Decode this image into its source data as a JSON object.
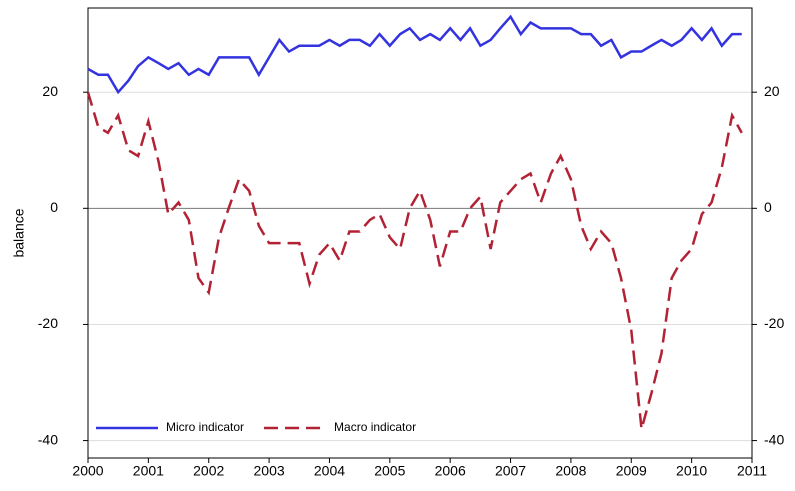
{
  "chart_data": {
    "type": "line",
    "ylabel": "balance",
    "x": [
      2000,
      2000.17,
      2000.33,
      2000.5,
      2000.67,
      2000.83,
      2001,
      2001.17,
      2001.33,
      2001.5,
      2001.67,
      2001.83,
      2002,
      2002.17,
      2002.33,
      2002.5,
      2002.67,
      2002.83,
      2003,
      2003.17,
      2003.33,
      2003.5,
      2003.67,
      2003.83,
      2004,
      2004.17,
      2004.33,
      2004.5,
      2004.67,
      2004.83,
      2005,
      2005.17,
      2005.33,
      2005.5,
      2005.67,
      2005.83,
      2006,
      2006.17,
      2006.33,
      2006.5,
      2006.67,
      2006.83,
      2007,
      2007.17,
      2007.33,
      2007.5,
      2007.67,
      2007.83,
      2008,
      2008.17,
      2008.33,
      2008.5,
      2008.67,
      2008.83,
      2009,
      2009.17,
      2009.33,
      2009.5,
      2009.67,
      2009.83,
      2010,
      2010.17,
      2010.33,
      2010.5,
      2010.67,
      2010.83
    ],
    "series": [
      {
        "name": "Micro indicator",
        "color": "#3333e0",
        "dash": "solid",
        "values": [
          24,
          23,
          23,
          20,
          22,
          24.5,
          26,
          25,
          24,
          25,
          23,
          24,
          23,
          26,
          26,
          26,
          26,
          23,
          26,
          29,
          27,
          28,
          28,
          28,
          29,
          28,
          29,
          29,
          28,
          30,
          28,
          30,
          31,
          29,
          30,
          29,
          31,
          29,
          31,
          28,
          29,
          31,
          33,
          30,
          32,
          31,
          31,
          31,
          31,
          30,
          30,
          28,
          29,
          26,
          27,
          27,
          28,
          29,
          28,
          29,
          31,
          29,
          31,
          28,
          30,
          30
        ]
      },
      {
        "name": "Macro indicator",
        "color": "#b22234",
        "dash": "dashed",
        "values": [
          20,
          14,
          13,
          16,
          10,
          9,
          15,
          8,
          -1,
          1,
          -2,
          -12,
          -14.5,
          -5,
          0,
          5,
          3,
          -3,
          -6,
          -6,
          -6,
          -6,
          -13,
          -8,
          -6,
          -9,
          -4,
          -4,
          -2,
          -1,
          -5,
          -7,
          0,
          3,
          -2,
          -10,
          -4,
          -4,
          0,
          2,
          -7,
          1,
          3,
          5,
          6,
          1,
          6,
          9,
          5,
          -3,
          -7,
          -4,
          -6,
          -12,
          -21,
          -38,
          -32,
          -25,
          -12,
          -9,
          -7,
          -1,
          1,
          7,
          16,
          13
        ]
      }
    ],
    "xlim": [
      2000,
      2011
    ],
    "xticks": [
      2000,
      2001,
      2002,
      2003,
      2004,
      2005,
      2006,
      2007,
      2008,
      2009,
      2010,
      2011
    ],
    "ylim": [
      -43,
      34.5
    ],
    "yticks": [
      -40,
      -20,
      0,
      20
    ],
    "grid": true,
    "legend": "lower left"
  }
}
